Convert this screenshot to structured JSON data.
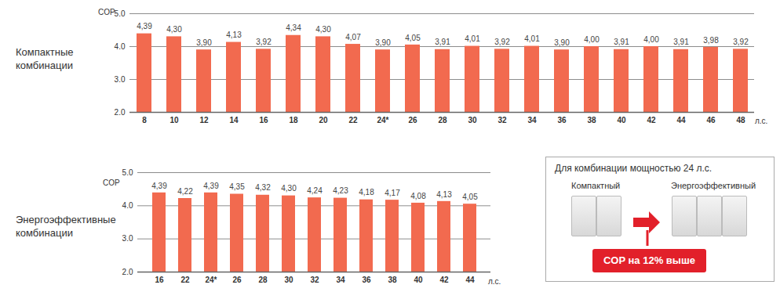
{
  "chart_data": [
    {
      "type": "bar",
      "title": "Компактные комбинации",
      "y_label": "COP",
      "x_label": "л.с.",
      "categories": [
        "8",
        "10",
        "12",
        "14",
        "16",
        "18",
        "20",
        "22",
        "24*",
        "26",
        "28",
        "30",
        "32",
        "34",
        "36",
        "38",
        "40",
        "42",
        "44",
        "46",
        "48"
      ],
      "values": [
        4.39,
        4.3,
        3.9,
        4.13,
        3.92,
        4.34,
        4.3,
        4.07,
        3.9,
        4.05,
        3.91,
        4.01,
        3.92,
        4.01,
        3.9,
        4.0,
        3.91,
        4.0,
        3.91,
        3.98,
        3.92
      ],
      "value_labels": [
        "4,39",
        "4,30",
        "3,90",
        "4,13",
        "3,92",
        "4,34",
        "4,30",
        "4,07",
        "3,90",
        "4,05",
        "3,91",
        "4,01",
        "3,92",
        "4,01",
        "3,90",
        "4,00",
        "3,91",
        "4,00",
        "3,91",
        "3,98",
        "3,92"
      ],
      "color": "#f26a4f",
      "ylim": [
        2,
        5
      ],
      "yticks": [
        2,
        3,
        4,
        5
      ],
      "grid": true,
      "data_labels": true
    },
    {
      "type": "bar",
      "title": "Энергоэффективные комбинации",
      "y_label": "COP",
      "x_label": "л.с.",
      "categories": [
        "16",
        "22",
        "24*",
        "26",
        "28",
        "30",
        "32",
        "34",
        "36",
        "38",
        "40",
        "42",
        "44"
      ],
      "values": [
        4.39,
        4.22,
        4.39,
        4.35,
        4.32,
        4.3,
        4.24,
        4.23,
        4.18,
        4.17,
        4.08,
        4.13,
        4.05
      ],
      "value_labels": [
        "4,39",
        "4,22",
        "4,39",
        "4,35",
        "4,32",
        "4,30",
        "4,24",
        "4,23",
        "4,18",
        "4,17",
        "4,08",
        "4,13",
        "4,05"
      ],
      "color": "#f26a4f",
      "ylim": [
        2,
        5
      ],
      "yticks": [
        2,
        3,
        4,
        5
      ],
      "grid": true,
      "data_labels": true
    }
  ],
  "callout": {
    "title": "Для комбинации мощностью 24 л.с.",
    "from": "Компактный",
    "to": "Энергоэффективный",
    "badge": "COP на 12% выше"
  }
}
